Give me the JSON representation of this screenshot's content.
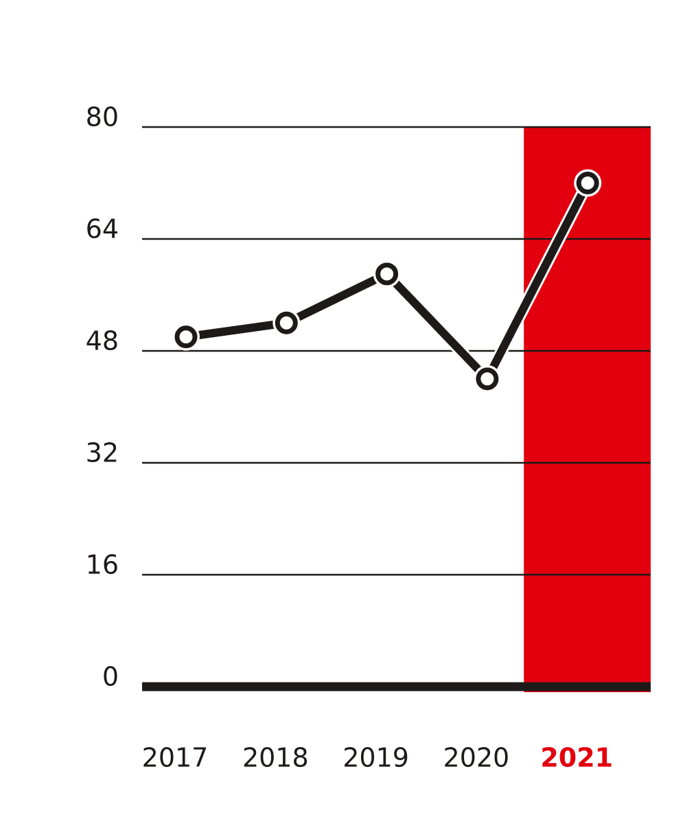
{
  "chart_data": {
    "type": "line",
    "categories": [
      "2017",
      "2018",
      "2019",
      "2020",
      "2021"
    ],
    "series": [
      {
        "color": "#1d1a19",
        "values": [
          50,
          52,
          59,
          44,
          72
        ]
      }
    ],
    "ylim": [
      0,
      80
    ],
    "yticks": [
      0,
      16,
      32,
      48,
      64,
      80
    ],
    "grid": true,
    "highlight": "2021",
    "highlight_color": "#e2000f"
  }
}
